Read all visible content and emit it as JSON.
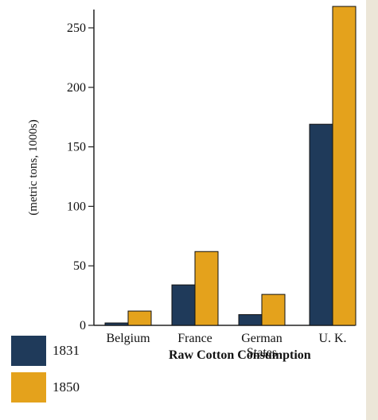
{
  "chart_data": {
    "type": "bar",
    "title": "Raw Cotton Consumption",
    "ylabel": "(metric tons, 1000s)",
    "xlabel": "",
    "categories": [
      "Belgium",
      "France",
      "German\nStates",
      "U. K."
    ],
    "series": [
      {
        "name": "1831",
        "color": "#1f3a5a",
        "values": [
          2,
          34,
          9,
          169
        ]
      },
      {
        "name": "1850",
        "color": "#e4a21c",
        "values": [
          12,
          62,
          26,
          268
        ]
      }
    ],
    "ylim": [
      0,
      270
    ],
    "yticks": [
      0,
      50,
      100,
      150,
      200,
      250
    ],
    "grid": false,
    "legend_position": "bottom-left"
  }
}
